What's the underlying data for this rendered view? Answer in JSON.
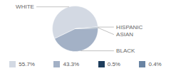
{
  "chart_data": {
    "type": "pie",
    "categories": [
      "WHITE",
      "BLACK",
      "ASIAN",
      "HISPANIC"
    ],
    "values": [
      55.7,
      43.3,
      0.5,
      0.4
    ],
    "value_labels": [
      "55.7%",
      "43.3%",
      "0.5%",
      "0.4%"
    ],
    "colors": [
      "#d3d9e3",
      "#a3b1c6",
      "#1e3d5c",
      "#6a84a3"
    ],
    "legend": "bottom"
  }
}
